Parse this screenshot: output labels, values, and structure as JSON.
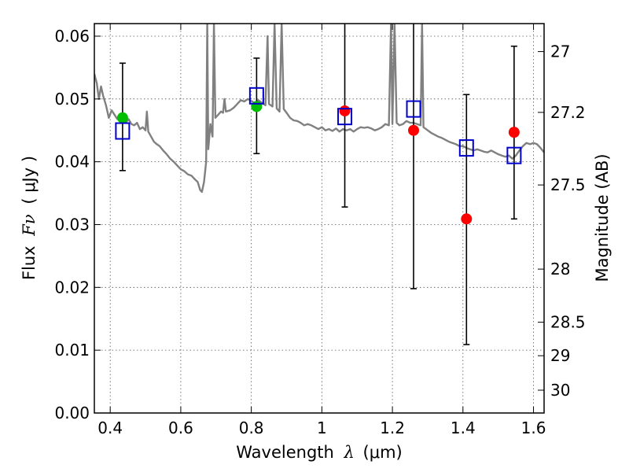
{
  "chart_data": {
    "type": "scatter",
    "xlabel": "Wavelength",
    "xlabel_symbol": "λ",
    "xlabel_unit": "(μm)",
    "ylabel": "Flux",
    "ylabel_symbol": "Fν",
    "ylabel_unit": "( μJy )",
    "y2label": "Magnitude (AB)",
    "xlim": [
      0.355,
      1.63
    ],
    "ylim": [
      0.0,
      0.062
    ],
    "grid": true,
    "x_ticks": [
      {
        "value": 0.4,
        "label": "0.4"
      },
      {
        "value": 0.6,
        "label": "0.6"
      },
      {
        "value": 0.8,
        "label": "0.8"
      },
      {
        "value": 1.0,
        "label": "1"
      },
      {
        "value": 1.2,
        "label": "1.2"
      },
      {
        "value": 1.4,
        "label": "1.4"
      },
      {
        "value": 1.6,
        "label": "1.6"
      }
    ],
    "y_ticks": [
      {
        "value": 0.0,
        "label": "0.00"
      },
      {
        "value": 0.01,
        "label": "0.01"
      },
      {
        "value": 0.02,
        "label": "0.02"
      },
      {
        "value": 0.03,
        "label": "0.03"
      },
      {
        "value": 0.04,
        "label": "0.04"
      },
      {
        "value": 0.05,
        "label": "0.05"
      },
      {
        "value": 0.06,
        "label": "0.06"
      }
    ],
    "y2_ticks": [
      {
        "value": 27.0,
        "label": "27"
      },
      {
        "value": 27.2,
        "label": "27.2"
      },
      {
        "value": 27.5,
        "label": "27.5"
      },
      {
        "value": 28.0,
        "label": "28"
      },
      {
        "value": 28.5,
        "label": "28.5"
      },
      {
        "value": 29.0,
        "label": "29"
      },
      {
        "value": 30.0,
        "label": "30"
      }
    ],
    "series": [
      {
        "name": "model_sed",
        "type": "line",
        "color": "#808080",
        "points": [
          [
            0.355,
            0.054
          ],
          [
            0.362,
            0.0525
          ],
          [
            0.368,
            0.05
          ],
          [
            0.374,
            0.052
          ],
          [
            0.38,
            0.0505
          ],
          [
            0.388,
            0.049
          ],
          [
            0.396,
            0.047
          ],
          [
            0.404,
            0.0482
          ],
          [
            0.412,
            0.0475
          ],
          [
            0.42,
            0.0468
          ],
          [
            0.428,
            0.0472
          ],
          [
            0.436,
            0.0466
          ],
          [
            0.444,
            0.0462
          ],
          [
            0.452,
            0.0468
          ],
          [
            0.46,
            0.046
          ],
          [
            0.468,
            0.0458
          ],
          [
            0.476,
            0.0462
          ],
          [
            0.484,
            0.0452
          ],
          [
            0.492,
            0.0455
          ],
          [
            0.5,
            0.045
          ],
          [
            0.504,
            0.048
          ],
          [
            0.508,
            0.0448
          ],
          [
            0.516,
            0.044
          ],
          [
            0.524,
            0.0432
          ],
          [
            0.532,
            0.0428
          ],
          [
            0.54,
            0.0425
          ],
          [
            0.55,
            0.0418
          ],
          [
            0.56,
            0.0412
          ],
          [
            0.57,
            0.0405
          ],
          [
            0.58,
            0.04
          ],
          [
            0.59,
            0.0394
          ],
          [
            0.6,
            0.0388
          ],
          [
            0.61,
            0.0385
          ],
          [
            0.62,
            0.038
          ],
          [
            0.63,
            0.0378
          ],
          [
            0.64,
            0.0372
          ],
          [
            0.648,
            0.0368
          ],
          [
            0.655,
            0.0355
          ],
          [
            0.66,
            0.0352
          ],
          [
            0.666,
            0.0368
          ],
          [
            0.672,
            0.04
          ],
          [
            0.675,
            0.062
          ],
          [
            0.678,
            0.042
          ],
          [
            0.684,
            0.046
          ],
          [
            0.69,
            0.044
          ],
          [
            0.694,
            0.062
          ],
          [
            0.698,
            0.047
          ],
          [
            0.706,
            0.0475
          ],
          [
            0.714,
            0.048
          ],
          [
            0.72,
            0.0478
          ],
          [
            0.724,
            0.05
          ],
          [
            0.728,
            0.048
          ],
          [
            0.74,
            0.0482
          ],
          [
            0.75,
            0.0486
          ],
          [
            0.76,
            0.0492
          ],
          [
            0.77,
            0.0498
          ],
          [
            0.78,
            0.0496
          ],
          [
            0.79,
            0.05
          ],
          [
            0.8,
            0.0497
          ],
          [
            0.81,
            0.0493
          ],
          [
            0.82,
            0.0498
          ],
          [
            0.84,
            0.049
          ],
          [
            0.846,
            0.06
          ],
          [
            0.85,
            0.0492
          ],
          [
            0.86,
            0.0488
          ],
          [
            0.866,
            0.062
          ],
          [
            0.872,
            0.0485
          ],
          [
            0.88,
            0.048
          ],
          [
            0.886,
            0.062
          ],
          [
            0.892,
            0.0484
          ],
          [
            0.9,
            0.0478
          ],
          [
            0.91,
            0.047
          ],
          [
            0.92,
            0.0466
          ],
          [
            0.93,
            0.0465
          ],
          [
            0.94,
            0.0462
          ],
          [
            0.95,
            0.0458
          ],
          [
            0.96,
            0.046
          ],
          [
            0.97,
            0.0458
          ],
          [
            0.98,
            0.0455
          ],
          [
            0.99,
            0.0452
          ],
          [
            1.0,
            0.0455
          ],
          [
            1.01,
            0.045
          ],
          [
            1.02,
            0.0452
          ],
          [
            1.03,
            0.0449
          ],
          [
            1.04,
            0.0453
          ],
          [
            1.05,
            0.0448
          ],
          [
            1.06,
            0.0452
          ],
          [
            1.07,
            0.045
          ],
          [
            1.08,
            0.0452
          ],
          [
            1.09,
            0.0448
          ],
          [
            1.1,
            0.0452
          ],
          [
            1.11,
            0.0455
          ],
          [
            1.12,
            0.0454
          ],
          [
            1.13,
            0.0455
          ],
          [
            1.14,
            0.0453
          ],
          [
            1.15,
            0.045
          ],
          [
            1.16,
            0.0452
          ],
          [
            1.17,
            0.0455
          ],
          [
            1.18,
            0.046
          ],
          [
            1.19,
            0.0458
          ],
          [
            1.196,
            0.062
          ],
          [
            1.2,
            0.046
          ],
          [
            1.206,
            0.062
          ],
          [
            1.212,
            0.0462
          ],
          [
            1.22,
            0.0458
          ],
          [
            1.23,
            0.046
          ],
          [
            1.24,
            0.0465
          ],
          [
            1.25,
            0.0462
          ],
          [
            1.26,
            0.0462
          ],
          [
            1.27,
            0.046
          ],
          [
            1.28,
            0.0458
          ],
          [
            1.284,
            0.062
          ],
          [
            1.288,
            0.0455
          ],
          [
            1.3,
            0.045
          ],
          [
            1.31,
            0.0446
          ],
          [
            1.32,
            0.0443
          ],
          [
            1.33,
            0.044
          ],
          [
            1.34,
            0.0438
          ],
          [
            1.35,
            0.0435
          ],
          [
            1.36,
            0.0432
          ],
          [
            1.37,
            0.043
          ],
          [
            1.38,
            0.0428
          ],
          [
            1.39,
            0.0425
          ],
          [
            1.4,
            0.0425
          ],
          [
            1.41,
            0.0422
          ],
          [
            1.42,
            0.042
          ],
          [
            1.43,
            0.0418
          ],
          [
            1.44,
            0.042
          ],
          [
            1.45,
            0.0418
          ],
          [
            1.46,
            0.0416
          ],
          [
            1.47,
            0.0415
          ],
          [
            1.48,
            0.0418
          ],
          [
            1.49,
            0.0415
          ],
          [
            1.5,
            0.0412
          ],
          [
            1.51,
            0.041
          ],
          [
            1.52,
            0.0408
          ],
          [
            1.53,
            0.041
          ],
          [
            1.54,
            0.0405
          ],
          [
            1.55,
            0.041
          ],
          [
            1.56,
            0.0418
          ],
          [
            1.57,
            0.0425
          ],
          [
            1.58,
            0.043
          ],
          [
            1.59,
            0.0428
          ],
          [
            1.6,
            0.043
          ],
          [
            1.61,
            0.0428
          ],
          [
            1.62,
            0.0422
          ],
          [
            1.63,
            0.0415
          ]
        ]
      },
      {
        "name": "observed_detected",
        "type": "scatter",
        "marker": "circle",
        "color": "#00bf00",
        "points": [
          {
            "x": 0.435,
            "y": 0.047
          },
          {
            "x": 0.815,
            "y": 0.0488
          }
        ]
      },
      {
        "name": "observed_nondetected",
        "type": "scatter",
        "marker": "circle",
        "color": "#ff0000",
        "points": [
          {
            "x": 1.065,
            "y": 0.0481
          },
          {
            "x": 1.26,
            "y": 0.045
          },
          {
            "x": 1.41,
            "y": 0.0309
          },
          {
            "x": 1.545,
            "y": 0.0447
          }
        ]
      },
      {
        "name": "model_photometry",
        "type": "scatter",
        "marker": "open-square",
        "color": "#0000cc",
        "points": [
          {
            "x": 0.435,
            "y": 0.0449
          },
          {
            "x": 0.815,
            "y": 0.0505
          },
          {
            "x": 1.065,
            "y": 0.0472
          },
          {
            "x": 1.26,
            "y": 0.0484
          },
          {
            "x": 1.41,
            "y": 0.0422
          },
          {
            "x": 1.545,
            "y": 0.041
          }
        ]
      },
      {
        "name": "error_bars",
        "type": "errorbar",
        "color": "#000000",
        "points": [
          {
            "x": 0.435,
            "y": 0.0471,
            "low": 0.0386,
            "high": 0.0557
          },
          {
            "x": 0.815,
            "y": 0.0488,
            "low": 0.0413,
            "high": 0.0565
          },
          {
            "x": 1.065,
            "y": 0.0481,
            "low": 0.0328,
            "high": 0.065
          },
          {
            "x": 1.26,
            "y": 0.045,
            "low": 0.0198,
            "high": 0.065
          },
          {
            "x": 1.41,
            "y": 0.0309,
            "low": 0.0109,
            "high": 0.0507
          },
          {
            "x": 1.545,
            "y": 0.0447,
            "low": 0.0309,
            "high": 0.0584
          }
        ]
      }
    ]
  }
}
